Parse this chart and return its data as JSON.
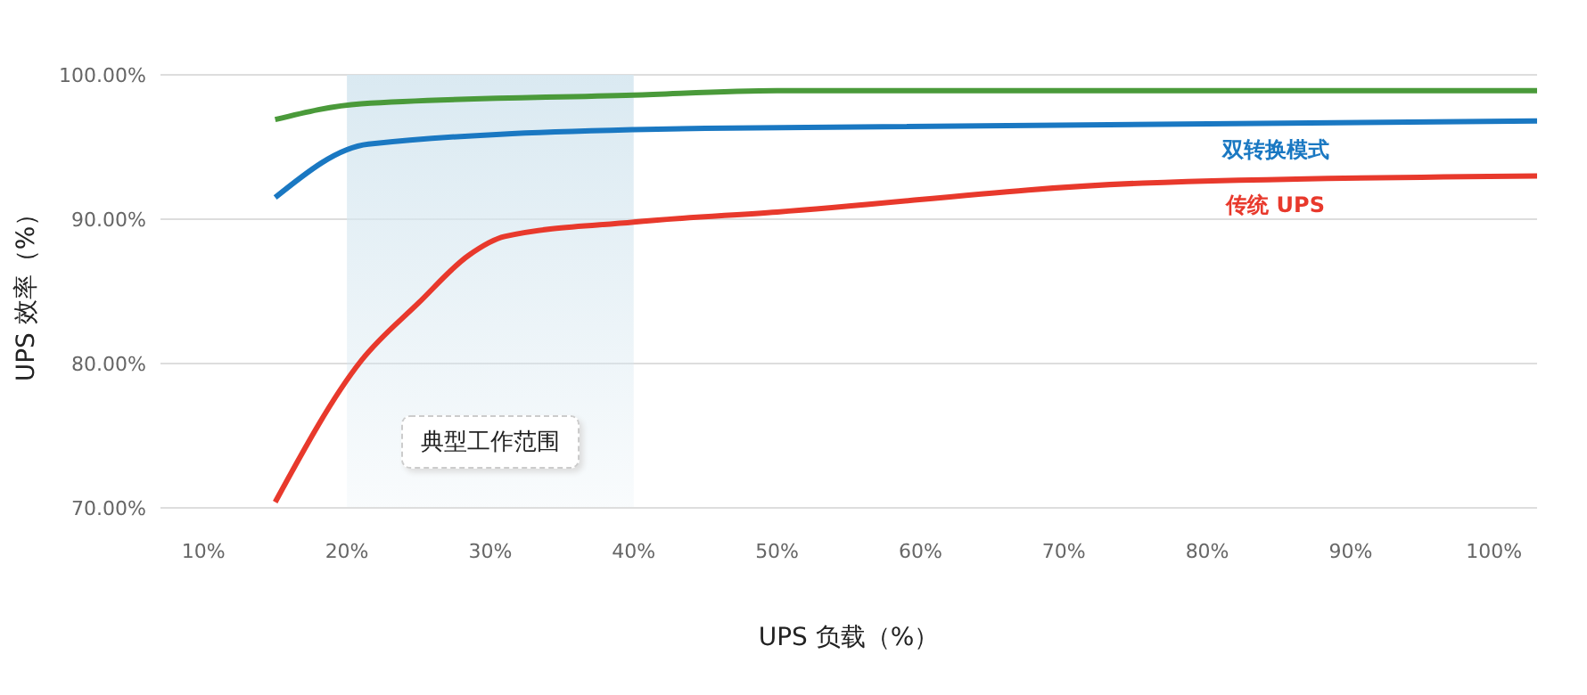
{
  "chart_data": {
    "type": "line",
    "xlabel": "UPS 负载（%）",
    "ylabel": "UPS 效率（%）",
    "xlim": [
      7,
      103
    ],
    "ylim": [
      70,
      100
    ],
    "xticks": [
      {
        "value": 10,
        "label": "10%"
      },
      {
        "value": 20,
        "label": "20%"
      },
      {
        "value": 30,
        "label": "30%"
      },
      {
        "value": 40,
        "label": "40%"
      },
      {
        "value": 50,
        "label": "50%"
      },
      {
        "value": 60,
        "label": "60%"
      },
      {
        "value": 70,
        "label": "70%"
      },
      {
        "value": 80,
        "label": "80%"
      },
      {
        "value": 90,
        "label": "90%"
      },
      {
        "value": 100,
        "label": "100%"
      }
    ],
    "yticks": [
      {
        "value": 70,
        "label": "70.00%"
      },
      {
        "value": 80,
        "label": "80.00%"
      },
      {
        "value": 90,
        "label": "90.00%"
      },
      {
        "value": 100,
        "label": "100.00%"
      }
    ],
    "grid": "y",
    "marker": "none",
    "line_style": "solid",
    "bands": [
      {
        "axis": "x",
        "from": 20,
        "to": 40,
        "label": "典型工作范围",
        "color": "#d6e7f0"
      }
    ],
    "series": [
      {
        "color": "#4a9a3a",
        "x": [
          15,
          21,
          40,
          50,
          103
        ],
        "values": [
          96.9,
          98.0,
          98.6,
          98.9,
          98.9
        ]
      },
      {
        "name": "双转换模式",
        "color": "#1a78c2",
        "x": [
          15,
          21.5,
          40,
          45,
          103
        ],
        "values": [
          91.5,
          95.2,
          96.2,
          96.3,
          96.8
        ]
      },
      {
        "name": "传统 UPS",
        "color": "#e8392c",
        "x": [
          15,
          21,
          25,
          28.5,
          31,
          40,
          50,
          75.5,
          103
        ],
        "values": [
          70.4,
          80.2,
          84.2,
          87.5,
          88.8,
          89.8,
          90.5,
          92.5,
          93.0
        ]
      }
    ]
  }
}
